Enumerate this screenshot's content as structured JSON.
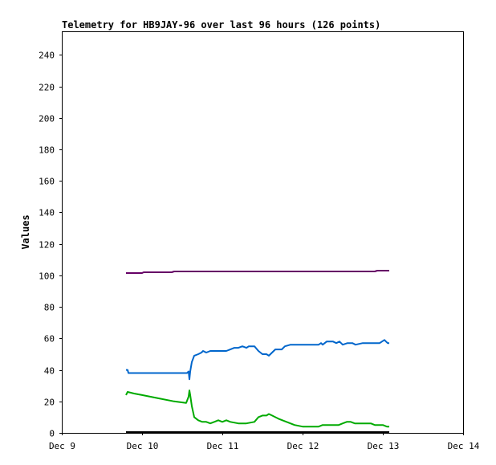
{
  "chart_data": {
    "type": "line",
    "title": "Telemetry for HB9JAY-96 over last 96 hours (126 points)",
    "xlabel": "",
    "ylabel": "Values",
    "xlim": [
      0,
      5
    ],
    "ylim": [
      0,
      255
    ],
    "x_ticks": [
      {
        "value": 0,
        "label": "Dec 9"
      },
      {
        "value": 1,
        "label": "Dec 10"
      },
      {
        "value": 2,
        "label": "Dec 11"
      },
      {
        "value": 3,
        "label": "Dec 12"
      },
      {
        "value": 4,
        "label": "Dec 13"
      },
      {
        "value": 5,
        "label": "Dec 14"
      }
    ],
    "y_ticks": [
      0,
      20,
      40,
      60,
      80,
      100,
      120,
      140,
      160,
      180,
      200,
      220,
      240
    ],
    "grid": false,
    "legend": false,
    "series": [
      {
        "color": "#660066",
        "points": [
          [
            0.8,
            101.5
          ],
          [
            1.0,
            101.5
          ],
          [
            1.02,
            102
          ],
          [
            1.37,
            102
          ],
          [
            1.4,
            102.5
          ],
          [
            3.5,
            102.5
          ],
          [
            3.9,
            102.5
          ],
          [
            3.93,
            103
          ],
          [
            4.08,
            103
          ]
        ]
      },
      {
        "color": "#0066cc",
        "points": [
          [
            0.8,
            40
          ],
          [
            0.82,
            40
          ],
          [
            0.83,
            38
          ],
          [
            1.0,
            38
          ],
          [
            1.2,
            38
          ],
          [
            1.56,
            38
          ],
          [
            1.58,
            39
          ],
          [
            1.59,
            34
          ],
          [
            1.6,
            39
          ],
          [
            1.62,
            45
          ],
          [
            1.65,
            49
          ],
          [
            1.7,
            50
          ],
          [
            1.74,
            51
          ],
          [
            1.76,
            52
          ],
          [
            1.8,
            51
          ],
          [
            1.85,
            52
          ],
          [
            1.95,
            52
          ],
          [
            2.05,
            52
          ],
          [
            2.1,
            53
          ],
          [
            2.15,
            54
          ],
          [
            2.2,
            54
          ],
          [
            2.25,
            55
          ],
          [
            2.3,
            54
          ],
          [
            2.33,
            55
          ],
          [
            2.4,
            55
          ],
          [
            2.45,
            52
          ],
          [
            2.5,
            50
          ],
          [
            2.55,
            50
          ],
          [
            2.58,
            49
          ],
          [
            2.62,
            51
          ],
          [
            2.66,
            53
          ],
          [
            2.74,
            53
          ],
          [
            2.78,
            55
          ],
          [
            2.85,
            56
          ],
          [
            3.0,
            56
          ],
          [
            3.2,
            56
          ],
          [
            3.23,
            57
          ],
          [
            3.25,
            56
          ],
          [
            3.3,
            58
          ],
          [
            3.38,
            58
          ],
          [
            3.42,
            57
          ],
          [
            3.46,
            58
          ],
          [
            3.5,
            56
          ],
          [
            3.56,
            57
          ],
          [
            3.62,
            57
          ],
          [
            3.66,
            56
          ],
          [
            3.75,
            57
          ],
          [
            3.85,
            57
          ],
          [
            3.9,
            57
          ],
          [
            3.96,
            57
          ],
          [
            4.02,
            59
          ],
          [
            4.04,
            58
          ],
          [
            4.06,
            57
          ],
          [
            4.08,
            57
          ]
        ]
      },
      {
        "color": "#00aa00",
        "points": [
          [
            0.8,
            24
          ],
          [
            0.82,
            26
          ],
          [
            0.9,
            25
          ],
          [
            1.0,
            24
          ],
          [
            1.2,
            22
          ],
          [
            1.4,
            20
          ],
          [
            1.55,
            19
          ],
          [
            1.58,
            23
          ],
          [
            1.59,
            27
          ],
          [
            1.6,
            24
          ],
          [
            1.62,
            17
          ],
          [
            1.65,
            10
          ],
          [
            1.7,
            8
          ],
          [
            1.75,
            7
          ],
          [
            1.8,
            7
          ],
          [
            1.85,
            6
          ],
          [
            1.9,
            7
          ],
          [
            1.95,
            8
          ],
          [
            2.0,
            7
          ],
          [
            2.05,
            8
          ],
          [
            2.1,
            7
          ],
          [
            2.2,
            6
          ],
          [
            2.3,
            6
          ],
          [
            2.4,
            7
          ],
          [
            2.45,
            10
          ],
          [
            2.5,
            11
          ],
          [
            2.55,
            11
          ],
          [
            2.58,
            12
          ],
          [
            2.62,
            11
          ],
          [
            2.7,
            9
          ],
          [
            2.8,
            7
          ],
          [
            2.9,
            5
          ],
          [
            3.0,
            4
          ],
          [
            3.1,
            4
          ],
          [
            3.2,
            4
          ],
          [
            3.25,
            5
          ],
          [
            3.3,
            5
          ],
          [
            3.4,
            5
          ],
          [
            3.45,
            5
          ],
          [
            3.5,
            6
          ],
          [
            3.55,
            7
          ],
          [
            3.6,
            7
          ],
          [
            3.65,
            6
          ],
          [
            3.7,
            6
          ],
          [
            3.75,
            6
          ],
          [
            3.85,
            6
          ],
          [
            3.9,
            5
          ],
          [
            3.95,
            5
          ],
          [
            4.0,
            5
          ],
          [
            4.05,
            4
          ],
          [
            4.08,
            4
          ]
        ]
      },
      {
        "color": "#000000",
        "points": [
          [
            0.8,
            0.5
          ],
          [
            4.08,
            0.5
          ]
        ]
      }
    ]
  }
}
